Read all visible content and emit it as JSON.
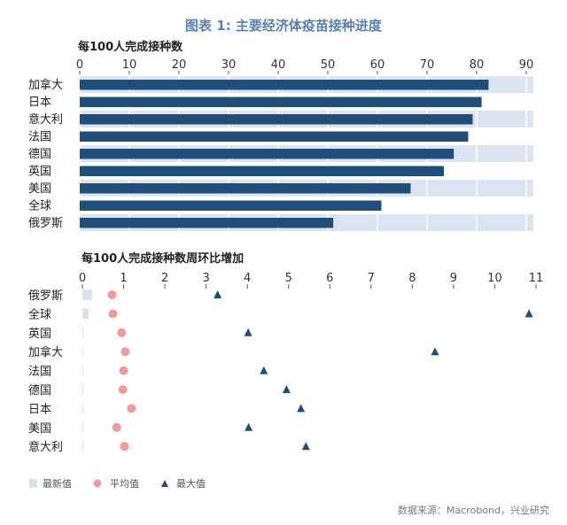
{
  "title": "图表 1:    主要经济体疫苗接种进度",
  "source": "数据来源：Macrobond，兴业研究",
  "colors": {
    "bar": "#1f4e79",
    "band": "#dbe4f0",
    "latest": "#d6e2f2",
    "mean": "#f09a9a",
    "max": "#1f4e79",
    "title": "#5b7fae"
  },
  "chart_data": [
    {
      "type": "bar",
      "orientation": "horizontal",
      "title": "每100人完成接种数",
      "categories": [
        "加拿大",
        "日本",
        "意大利",
        "法国",
        "德国",
        "英国",
        "美国",
        "全球",
        "俄罗斯"
      ],
      "values": [
        82.4,
        81.0,
        79.2,
        78.3,
        75.4,
        73.4,
        66.7,
        60.8,
        51.1
      ],
      "xlim": [
        0,
        90
      ],
      "ticks": [
        "0",
        "10",
        "20",
        "30",
        "40",
        "50",
        "60",
        "70",
        "80",
        "90"
      ],
      "grid": true
    },
    {
      "type": "scatter",
      "title": "每100人完成接种数周环比增加",
      "categories": [
        "俄罗斯",
        "全球",
        "英国",
        "加拿大",
        "法国",
        "德国",
        "日本",
        "美国",
        "意大利"
      ],
      "xlim": [
        0,
        11
      ],
      "ticks": [
        "0",
        "1",
        "2",
        "3",
        "4",
        "5",
        "6",
        "7",
        "8",
        "9",
        "10",
        "11"
      ],
      "legend_position": "bottom-left",
      "series": [
        {
          "name": "最新值",
          "marker": "bar",
          "values": [
            0.23,
            0.15,
            0.02,
            0.02,
            0.02,
            0.02,
            0.02,
            0.02,
            0.02
          ]
        },
        {
          "name": "平均值",
          "marker": "circle",
          "values": [
            0.72,
            0.74,
            0.95,
            1.04,
            1.0,
            0.98,
            1.19,
            0.83,
            1.02
          ]
        },
        {
          "name": "最大值",
          "marker": "triangle",
          "values": [
            3.28,
            10.83,
            4.02,
            8.55,
            4.4,
            4.95,
            5.3,
            4.03,
            5.42
          ]
        }
      ]
    }
  ]
}
